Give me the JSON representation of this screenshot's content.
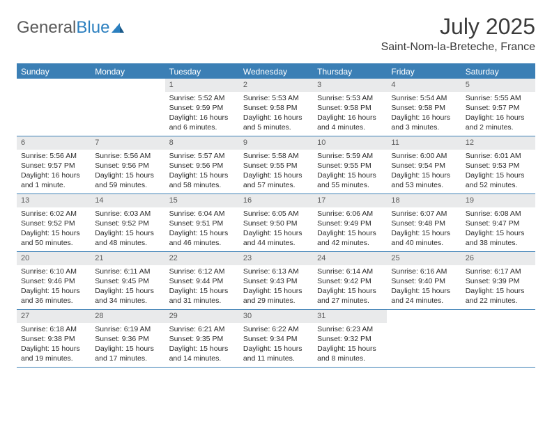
{
  "logo": {
    "text1": "General",
    "text2": "Blue"
  },
  "title": "July 2025",
  "location": "Saint-Nom-la-Breteche, France",
  "colors": {
    "header_bg": "#3b7fb5",
    "header_text": "#ffffff",
    "day_number_bg": "#e9eaeb",
    "day_number_text": "#5a5a5a",
    "body_text": "#2a2a2a",
    "rule": "#3b7fb5",
    "logo_gray": "#5a5a5a",
    "logo_blue": "#2b7fbf"
  },
  "day_names": [
    "Sunday",
    "Monday",
    "Tuesday",
    "Wednesday",
    "Thursday",
    "Friday",
    "Saturday"
  ],
  "weeks": [
    [
      {
        "n": "",
        "sunrise": "",
        "sunset": "",
        "daylight": ""
      },
      {
        "n": "",
        "sunrise": "",
        "sunset": "",
        "daylight": ""
      },
      {
        "n": "1",
        "sunrise": "Sunrise: 5:52 AM",
        "sunset": "Sunset: 9:59 PM",
        "daylight": "Daylight: 16 hours and 6 minutes."
      },
      {
        "n": "2",
        "sunrise": "Sunrise: 5:53 AM",
        "sunset": "Sunset: 9:58 PM",
        "daylight": "Daylight: 16 hours and 5 minutes."
      },
      {
        "n": "3",
        "sunrise": "Sunrise: 5:53 AM",
        "sunset": "Sunset: 9:58 PM",
        "daylight": "Daylight: 16 hours and 4 minutes."
      },
      {
        "n": "4",
        "sunrise": "Sunrise: 5:54 AM",
        "sunset": "Sunset: 9:58 PM",
        "daylight": "Daylight: 16 hours and 3 minutes."
      },
      {
        "n": "5",
        "sunrise": "Sunrise: 5:55 AM",
        "sunset": "Sunset: 9:57 PM",
        "daylight": "Daylight: 16 hours and 2 minutes."
      }
    ],
    [
      {
        "n": "6",
        "sunrise": "Sunrise: 5:56 AM",
        "sunset": "Sunset: 9:57 PM",
        "daylight": "Daylight: 16 hours and 1 minute."
      },
      {
        "n": "7",
        "sunrise": "Sunrise: 5:56 AM",
        "sunset": "Sunset: 9:56 PM",
        "daylight": "Daylight: 15 hours and 59 minutes."
      },
      {
        "n": "8",
        "sunrise": "Sunrise: 5:57 AM",
        "sunset": "Sunset: 9:56 PM",
        "daylight": "Daylight: 15 hours and 58 minutes."
      },
      {
        "n": "9",
        "sunrise": "Sunrise: 5:58 AM",
        "sunset": "Sunset: 9:55 PM",
        "daylight": "Daylight: 15 hours and 57 minutes."
      },
      {
        "n": "10",
        "sunrise": "Sunrise: 5:59 AM",
        "sunset": "Sunset: 9:55 PM",
        "daylight": "Daylight: 15 hours and 55 minutes."
      },
      {
        "n": "11",
        "sunrise": "Sunrise: 6:00 AM",
        "sunset": "Sunset: 9:54 PM",
        "daylight": "Daylight: 15 hours and 53 minutes."
      },
      {
        "n": "12",
        "sunrise": "Sunrise: 6:01 AM",
        "sunset": "Sunset: 9:53 PM",
        "daylight": "Daylight: 15 hours and 52 minutes."
      }
    ],
    [
      {
        "n": "13",
        "sunrise": "Sunrise: 6:02 AM",
        "sunset": "Sunset: 9:52 PM",
        "daylight": "Daylight: 15 hours and 50 minutes."
      },
      {
        "n": "14",
        "sunrise": "Sunrise: 6:03 AM",
        "sunset": "Sunset: 9:52 PM",
        "daylight": "Daylight: 15 hours and 48 minutes."
      },
      {
        "n": "15",
        "sunrise": "Sunrise: 6:04 AM",
        "sunset": "Sunset: 9:51 PM",
        "daylight": "Daylight: 15 hours and 46 minutes."
      },
      {
        "n": "16",
        "sunrise": "Sunrise: 6:05 AM",
        "sunset": "Sunset: 9:50 PM",
        "daylight": "Daylight: 15 hours and 44 minutes."
      },
      {
        "n": "17",
        "sunrise": "Sunrise: 6:06 AM",
        "sunset": "Sunset: 9:49 PM",
        "daylight": "Daylight: 15 hours and 42 minutes."
      },
      {
        "n": "18",
        "sunrise": "Sunrise: 6:07 AM",
        "sunset": "Sunset: 9:48 PM",
        "daylight": "Daylight: 15 hours and 40 minutes."
      },
      {
        "n": "19",
        "sunrise": "Sunrise: 6:08 AM",
        "sunset": "Sunset: 9:47 PM",
        "daylight": "Daylight: 15 hours and 38 minutes."
      }
    ],
    [
      {
        "n": "20",
        "sunrise": "Sunrise: 6:10 AM",
        "sunset": "Sunset: 9:46 PM",
        "daylight": "Daylight: 15 hours and 36 minutes."
      },
      {
        "n": "21",
        "sunrise": "Sunrise: 6:11 AM",
        "sunset": "Sunset: 9:45 PM",
        "daylight": "Daylight: 15 hours and 34 minutes."
      },
      {
        "n": "22",
        "sunrise": "Sunrise: 6:12 AM",
        "sunset": "Sunset: 9:44 PM",
        "daylight": "Daylight: 15 hours and 31 minutes."
      },
      {
        "n": "23",
        "sunrise": "Sunrise: 6:13 AM",
        "sunset": "Sunset: 9:43 PM",
        "daylight": "Daylight: 15 hours and 29 minutes."
      },
      {
        "n": "24",
        "sunrise": "Sunrise: 6:14 AM",
        "sunset": "Sunset: 9:42 PM",
        "daylight": "Daylight: 15 hours and 27 minutes."
      },
      {
        "n": "25",
        "sunrise": "Sunrise: 6:16 AM",
        "sunset": "Sunset: 9:40 PM",
        "daylight": "Daylight: 15 hours and 24 minutes."
      },
      {
        "n": "26",
        "sunrise": "Sunrise: 6:17 AM",
        "sunset": "Sunset: 9:39 PM",
        "daylight": "Daylight: 15 hours and 22 minutes."
      }
    ],
    [
      {
        "n": "27",
        "sunrise": "Sunrise: 6:18 AM",
        "sunset": "Sunset: 9:38 PM",
        "daylight": "Daylight: 15 hours and 19 minutes."
      },
      {
        "n": "28",
        "sunrise": "Sunrise: 6:19 AM",
        "sunset": "Sunset: 9:36 PM",
        "daylight": "Daylight: 15 hours and 17 minutes."
      },
      {
        "n": "29",
        "sunrise": "Sunrise: 6:21 AM",
        "sunset": "Sunset: 9:35 PM",
        "daylight": "Daylight: 15 hours and 14 minutes."
      },
      {
        "n": "30",
        "sunrise": "Sunrise: 6:22 AM",
        "sunset": "Sunset: 9:34 PM",
        "daylight": "Daylight: 15 hours and 11 minutes."
      },
      {
        "n": "31",
        "sunrise": "Sunrise: 6:23 AM",
        "sunset": "Sunset: 9:32 PM",
        "daylight": "Daylight: 15 hours and 8 minutes."
      },
      {
        "n": "",
        "sunrise": "",
        "sunset": "",
        "daylight": ""
      },
      {
        "n": "",
        "sunrise": "",
        "sunset": "",
        "daylight": ""
      }
    ]
  ]
}
